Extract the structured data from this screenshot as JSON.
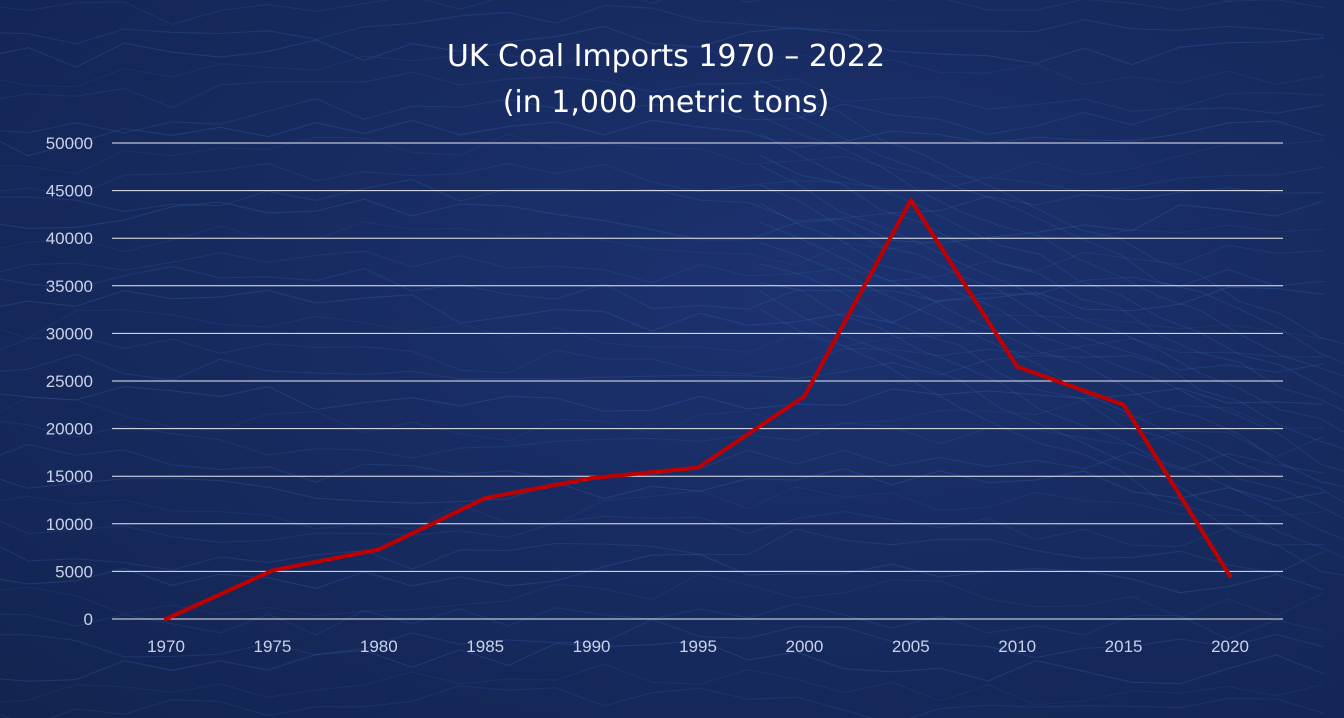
{
  "chart_data": {
    "type": "line",
    "title_line1": "UK Coal Imports 1970 – 2022",
    "title_line2": "(in 1,000 metric tons)",
    "xlabel": "",
    "ylabel": "",
    "categories": [
      "1970",
      "1975",
      "1980",
      "1985",
      "1990",
      "1995",
      "2000",
      "2005",
      "2010",
      "2015",
      "2020"
    ],
    "series": [
      {
        "name": "UK Coal Imports",
        "color": "#c00000",
        "values": [
          0,
          5100,
          7300,
          12700,
          14800,
          15900,
          23400,
          44000,
          26500,
          22500,
          4500
        ]
      }
    ],
    "ylim": [
      0,
      50000
    ],
    "yticks": [
      0,
      5000,
      10000,
      15000,
      20000,
      25000,
      30000,
      35000,
      40000,
      45000,
      50000
    ],
    "ytick_labels": [
      "0",
      "5000",
      "10000",
      "15000",
      "20000",
      "25000",
      "30000",
      "35000",
      "40000",
      "45000",
      "50000"
    ],
    "grid": true,
    "legend": "none"
  },
  "colors": {
    "background": "#17295c",
    "grid": "#ffffff",
    "series": "#c00000",
    "text": "#c9d2e6"
  }
}
